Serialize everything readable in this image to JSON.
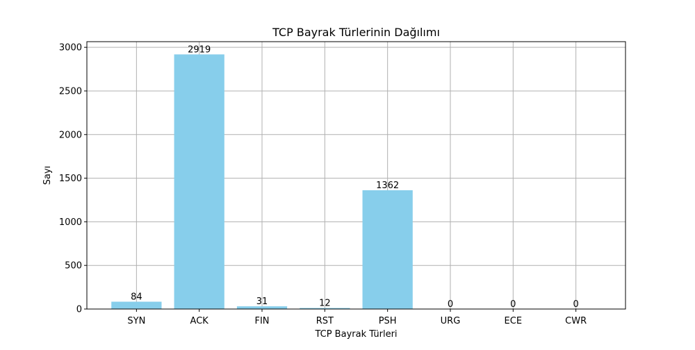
{
  "chart_data": {
    "type": "bar",
    "title": "TCP Bayrak Türlerinin Dağılımı",
    "xlabel": "TCP Bayrak Türleri",
    "ylabel": "Sayı",
    "categories": [
      "SYN",
      "ACK",
      "FIN",
      "RST",
      "PSH",
      "URG",
      "ECE",
      "CWR"
    ],
    "values": [
      84,
      2919,
      31,
      12,
      1362,
      0,
      0,
      0
    ],
    "data_labels": [
      "84",
      "2919",
      "31",
      "12",
      "1362",
      "0",
      "0",
      "0"
    ],
    "ylim": [
      0,
      3064.95
    ],
    "yticks": [
      0,
      500,
      1000,
      1500,
      2000,
      2500,
      3000
    ],
    "ytick_labels": [
      "0",
      "500",
      "1000",
      "1500",
      "2000",
      "2500",
      "3000"
    ],
    "grid": true,
    "bar_color": "#87ceeb",
    "grid_color": "#b0b0b0"
  }
}
